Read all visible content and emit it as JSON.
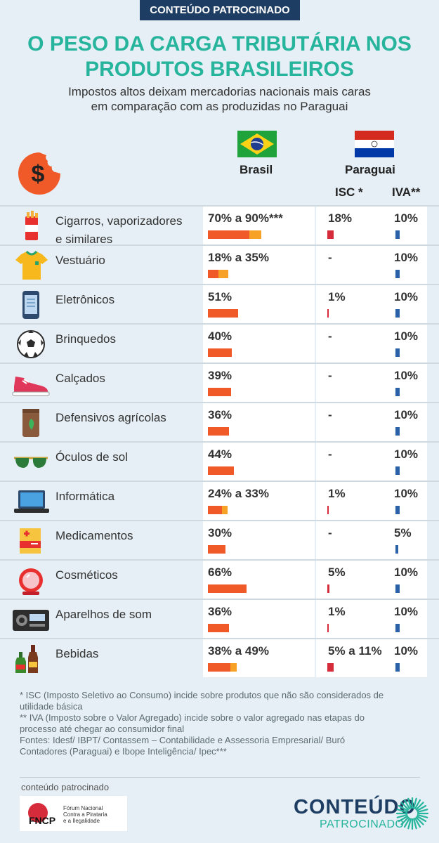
{
  "header": {
    "badge": "CONTEÚDO PATROCINADO",
    "title_line1": "O PESO DA CARGA TRIBUTÁRIA NOS",
    "title_line2": "PRODUTOS BRASILEIROS",
    "subtitle_line1": "Impostos altos deixam mercadorias nacionais mais caras",
    "subtitle_line2": "em comparação com as produzidas no Paraguai"
  },
  "columns": {
    "brasil": "Brasil",
    "paraguai": "Paraguai",
    "isc": "ISC *",
    "iva": "IVA**"
  },
  "colors": {
    "bar_min": "#f05a28",
    "bar_range": "#f7a126",
    "isc_bar": "#d62b3a",
    "iva_bar": "#2b62a7",
    "title": "#26b49d"
  },
  "chart_data": {
    "type": "table",
    "title": "O PESO DA CARGA TRIBUTÁRIA NOS PRODUTOS BRASILEIROS",
    "series": [
      {
        "name": "Brasil",
        "unit": "%"
      },
      {
        "name": "Paraguai ISC",
        "unit": "%"
      },
      {
        "name": "Paraguai IVA",
        "unit": "%"
      }
    ],
    "rows": [
      {
        "name_line1": "Cigarros, vaporizadores",
        "name_line2": "e similares",
        "icon": "cigarette-pack-icon",
        "brasil_text": "70% a 90%***",
        "brasil_min": 70,
        "brasil_max": 90,
        "isc_text": "18%",
        "isc_value": 18,
        "iva_text": "10%",
        "iva_value": 10
      },
      {
        "name_line1": "Vestuário",
        "name_line2": "",
        "icon": "tshirt-icon",
        "brasil_text": "18% a 35%",
        "brasil_min": 18,
        "brasil_max": 35,
        "isc_text": "-",
        "isc_value": 0,
        "iva_text": "10%",
        "iva_value": 10
      },
      {
        "name_line1": "Eletrônicos",
        "name_line2": "",
        "icon": "smartphone-icon",
        "brasil_text": "51%",
        "brasil_min": 51,
        "brasil_max": 51,
        "isc_text": "1%",
        "isc_value": 1,
        "iva_text": "10%",
        "iva_value": 10
      },
      {
        "name_line1": "Brinquedos",
        "name_line2": "",
        "icon": "soccer-ball-icon",
        "brasil_text": "40%",
        "brasil_min": 40,
        "brasil_max": 40,
        "isc_text": "-",
        "isc_value": 0,
        "iva_text": "10%",
        "iva_value": 10
      },
      {
        "name_line1": "Calçados",
        "name_line2": "",
        "icon": "sneaker-icon",
        "brasil_text": "39%",
        "brasil_min": 39,
        "brasil_max": 39,
        "isc_text": "-",
        "isc_value": 0,
        "iva_text": "10%",
        "iva_value": 10
      },
      {
        "name_line1": "Defensivos agrícolas",
        "name_line2": "",
        "icon": "pesticide-bag-icon",
        "brasil_text": "36%",
        "brasil_min": 36,
        "brasil_max": 36,
        "isc_text": "-",
        "isc_value": 0,
        "iva_text": "10%",
        "iva_value": 10
      },
      {
        "name_line1": "Óculos de sol",
        "name_line2": "",
        "icon": "sunglasses-icon",
        "brasil_text": "44%",
        "brasil_min": 44,
        "brasil_max": 44,
        "isc_text": "-",
        "isc_value": 0,
        "iva_text": "10%",
        "iva_value": 10
      },
      {
        "name_line1": "Informática",
        "name_line2": "",
        "icon": "laptop-icon",
        "brasil_text": "24% a 33%",
        "brasil_min": 24,
        "brasil_max": 33,
        "isc_text": "1%",
        "isc_value": 1,
        "iva_text": "10%",
        "iva_value": 10
      },
      {
        "name_line1": "Medicamentos",
        "name_line2": "",
        "icon": "medicine-box-icon",
        "brasil_text": "30%",
        "brasil_min": 30,
        "brasil_max": 30,
        "isc_text": "-",
        "isc_value": 0,
        "iva_text": "5%",
        "iva_value": 5
      },
      {
        "name_line1": "Cosméticos",
        "name_line2": "",
        "icon": "compact-mirror-icon",
        "brasil_text": "66%",
        "brasil_min": 66,
        "brasil_max": 66,
        "isc_text": "5%",
        "isc_value": 5,
        "iva_text": "10%",
        "iva_value": 10
      },
      {
        "name_line1": "Aparelhos de som",
        "name_line2": "",
        "icon": "stereo-icon",
        "brasil_text": "36%",
        "brasil_min": 36,
        "brasil_max": 36,
        "isc_text": "1%",
        "isc_value": 1,
        "iva_text": "10%",
        "iva_value": 10
      },
      {
        "name_line1": "Bebidas",
        "name_line2": "",
        "icon": "bottles-icon",
        "brasil_text": "38% a 49%",
        "brasil_min": 38,
        "brasil_max": 49,
        "isc_text": "5% a 11%",
        "isc_value": 11,
        "iva_text": "10%",
        "iva_value": 10
      }
    ]
  },
  "notes": {
    "line1": "* ISC (Imposto Seletivo ao Consumo) incide sobre produtos que não são considerados de",
    "line2": "utilidade básica",
    "line3": "** IVA  (Imposto sobre o Valor Agregado) incide sobre o valor agregado nas etapas do",
    "line4": "processo até chegar ao consumidor final",
    "line5": "Fontes: Idesf/ IBPT/ Contassem – Contabilidade e Assessoria Empresarial/ Buró",
    "line6": "Contadores (Paraguai) e Ibope Inteligência/ Ipec***"
  },
  "footer": {
    "sponsor_label": "conteúdo patrocinado",
    "fncp_logo": "FNCP",
    "fncp_line1": "Fórum Nacional",
    "fncp_line2": "Contra a Pirataria",
    "fncp_line3": "e a Ilegalidade",
    "brand_line1": "CONTEÚDO",
    "brand_line2": "PATROCINADO"
  }
}
